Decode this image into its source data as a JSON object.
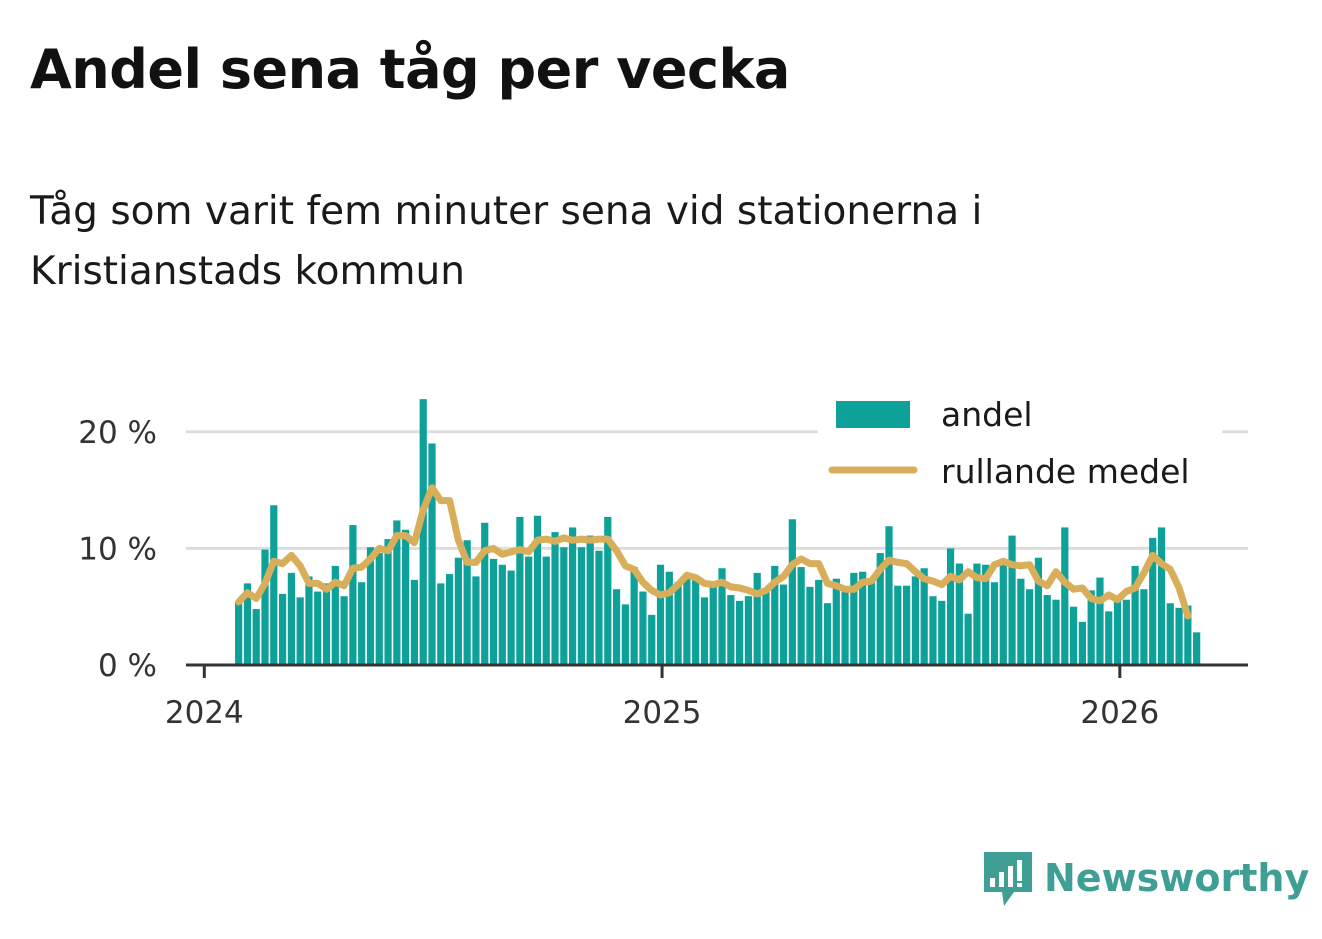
{
  "title": "Andel sena tåg per vecka",
  "subtitle": "Tåg som varit fem minuter sena vid stationerna i Kristianstads kommun",
  "brand": {
    "name": "Newsworthy",
    "color": "#3f9f95"
  },
  "colors": {
    "bar": "#0ea19a",
    "line": "#d9ae5a",
    "grid": "#dddddd",
    "axis": "#333333"
  },
  "chart_data": {
    "type": "bar",
    "ylim": [
      0,
      22.9
    ],
    "y_ticks": [
      {
        "value": 0,
        "label": "0 %"
      },
      {
        "value": 10,
        "label": "10 %"
      },
      {
        "value": 20,
        "label": "20 %"
      }
    ],
    "x_ticks": [
      {
        "value": 2024.0,
        "label": "2024"
      },
      {
        "value": 2025.0,
        "label": "2025"
      },
      {
        "value": 2026.0,
        "label": "2026"
      }
    ],
    "xlim": [
      2023.96,
      2026.28
    ],
    "x_start": 2024.075,
    "x_step": 0.0192,
    "grid": "horizontal",
    "legend_position": "top-right",
    "series": [
      {
        "name": "andel",
        "type": "bar",
        "values": [
          5.4,
          7.0,
          4.8,
          9.9,
          13.7,
          6.1,
          7.9,
          5.8,
          7.6,
          6.3,
          7.0,
          8.5,
          5.9,
          12.0,
          7.1,
          10.1,
          9.6,
          10.8,
          12.4,
          11.6,
          7.3,
          22.8,
          19.0,
          7.0,
          7.8,
          9.2,
          10.7,
          7.6,
          12.2,
          9.1,
          8.6,
          8.1,
          12.7,
          9.3,
          12.8,
          9.3,
          11.4,
          10.1,
          11.8,
          10.1,
          11.1,
          9.8,
          12.7,
          6.5,
          5.2,
          8.4,
          6.3,
          4.3,
          8.6,
          8.0,
          7.1,
          7.8,
          7.6,
          5.8,
          6.7,
          8.3,
          6.0,
          5.5,
          5.9,
          7.9,
          6.6,
          8.5,
          6.9,
          12.5,
          8.4,
          6.7,
          7.3,
          5.3,
          7.4,
          6.3,
          7.9,
          8.0,
          7.4,
          9.6,
          11.9,
          6.8,
          6.8,
          7.6,
          8.3,
          5.9,
          5.5,
          10.0,
          8.7,
          4.4,
          8.7,
          8.6,
          7.1,
          8.8,
          11.1,
          7.4,
          6.5,
          9.2,
          6.0,
          5.6,
          11.8,
          5.0,
          3.7,
          6.4,
          7.5,
          4.6,
          5.9,
          5.6,
          8.5,
          6.5,
          10.9,
          11.8,
          5.3,
          4.9,
          5.1,
          2.8
        ]
      },
      {
        "name": "rullande medel",
        "type": "line",
        "values": [
          5.4,
          6.2,
          5.7,
          7.0,
          8.9,
          8.7,
          9.4,
          8.5,
          7.0,
          7.0,
          6.5,
          7.1,
          6.8,
          8.3,
          8.4,
          9.1,
          10.0,
          9.8,
          11.1,
          11.1,
          10.5,
          13.3,
          15.2,
          14.1,
          14.1,
          10.7,
          8.8,
          8.8,
          9.8,
          10.0,
          9.5,
          9.7,
          9.9,
          9.7,
          10.7,
          10.8,
          10.6,
          10.9,
          10.7,
          10.8,
          10.7,
          10.8,
          10.8,
          9.8,
          8.5,
          8.2,
          7.1,
          6.4,
          6.0,
          6.2,
          6.9,
          7.7,
          7.5,
          7.0,
          6.9,
          7.1,
          6.7,
          6.6,
          6.4,
          6.1,
          6.4,
          7.1,
          7.6,
          8.6,
          9.1,
          8.7,
          8.7,
          7.0,
          6.8,
          6.5,
          6.5,
          7.1,
          7.2,
          8.2,
          9.0,
          8.8,
          8.7,
          8.0,
          7.4,
          7.2,
          6.9,
          7.6,
          7.3,
          8.0,
          7.5,
          7.4,
          8.6,
          8.9,
          8.6,
          8.5,
          8.6,
          7.2,
          6.8,
          8.0,
          7.1,
          6.5,
          6.6,
          5.7,
          5.5,
          6.0,
          5.6,
          6.3,
          6.6,
          7.9,
          9.4,
          8.7,
          8.2,
          6.6,
          4.2
        ]
      }
    ]
  }
}
